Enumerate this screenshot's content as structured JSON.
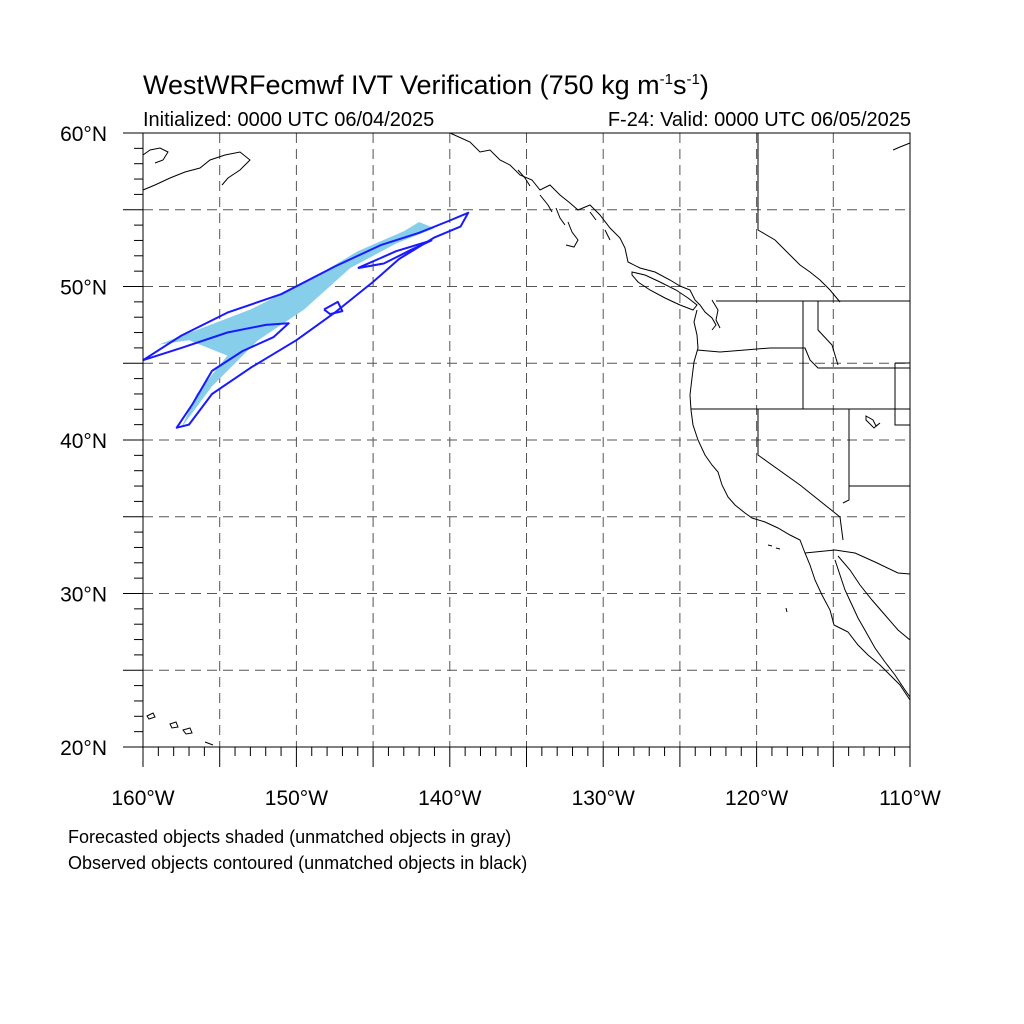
{
  "title": {
    "main": "WestWRFecmwf IVT Verification (750 kg m",
    "exp1": "-1",
    "mid": "s",
    "exp2": "-1",
    "close": ")"
  },
  "subtitle": {
    "initialized": "Initialized: 0000 UTC 06/04/2025",
    "valid": "F-24: Valid: 0000 UTC 06/05/2025"
  },
  "axes": {
    "lon_labels": [
      "160°W",
      "150°W",
      "140°W",
      "130°W",
      "120°W",
      "110°W"
    ],
    "lon_values": [
      -160,
      -150,
      -140,
      -130,
      -120,
      -110
    ],
    "lat_labels": [
      "20°N",
      "30°N",
      "40°N",
      "50°N",
      "60°N"
    ],
    "lat_values": [
      20,
      30,
      40,
      50,
      60
    ],
    "lon_range": [
      -160,
      -110
    ],
    "lat_range": [
      20,
      60
    ],
    "grid": "dashed, every 5 degrees"
  },
  "legend": {
    "line1": "Forecasted objects shaded (unmatched objects in gray)",
    "line2": "Observed objects contoured (unmatched objects in black)"
  },
  "colors": {
    "forecast_fill": "#87ceeb",
    "observed_contour": "#1a1aff",
    "coastline": "#000000",
    "grid": "#555555"
  },
  "chart_data": {
    "type": "map",
    "forecast_object": {
      "description_value": "matched forecast IVT object",
      "polygon_lonlat": [
        [
          -157.5,
          40.8
        ],
        [
          -156.5,
          43.0
        ],
        [
          -154.5,
          45.5
        ],
        [
          -157.0,
          46.5
        ],
        [
          -159.0,
          46.2
        ],
        [
          -153.0,
          48.5
        ],
        [
          -149.0,
          50.5
        ],
        [
          -146.0,
          52.3
        ],
        [
          -143.0,
          53.6
        ],
        [
          -142.0,
          54.2
        ],
        [
          -141.0,
          53.8
        ],
        [
          -143.5,
          52.8
        ],
        [
          -146.5,
          51.2
        ],
        [
          -149.5,
          48.5
        ],
        [
          -152.5,
          46.5
        ],
        [
          -155.5,
          43.5
        ]
      ]
    },
    "observed_contours_lonlat": [
      [
        [
          -160.0,
          45.2
        ],
        [
          -157.5,
          46.8
        ],
        [
          -154.5,
          48.3
        ],
        [
          -151.0,
          49.5
        ],
        [
          -147.5,
          51.3
        ],
        [
          -144.5,
          52.7
        ],
        [
          -142.0,
          53.5
        ],
        [
          -140.0,
          54.3
        ],
        [
          -138.8,
          54.8
        ],
        [
          -139.3,
          53.9
        ],
        [
          -141.0,
          53.2
        ],
        [
          -143.3,
          51.8
        ],
        [
          -145.0,
          50.3
        ],
        [
          -147.5,
          48.3
        ],
        [
          -150.0,
          46.5
        ],
        [
          -153.0,
          44.7
        ],
        [
          -155.5,
          43.0
        ],
        [
          -157.0,
          41.0
        ],
        [
          -157.8,
          40.8
        ],
        [
          -156.8,
          42.3
        ],
        [
          -155.5,
          44.5
        ],
        [
          -153.5,
          45.8
        ],
        [
          -151.5,
          46.7
        ],
        [
          -150.5,
          47.6
        ],
        [
          -152.0,
          47.5
        ],
        [
          -154.5,
          47.0
        ],
        [
          -157.5,
          46.0
        ],
        [
          -160.0,
          45.2
        ]
      ],
      [
        [
          -146.0,
          51.2
        ],
        [
          -143.5,
          52.3
        ],
        [
          -141.2,
          53.0
        ],
        [
          -142.5,
          52.4
        ],
        [
          -144.3,
          51.5
        ],
        [
          -146.0,
          51.2
        ]
      ],
      [
        [
          -148.2,
          48.5
        ],
        [
          -147.3,
          49.0
        ],
        [
          -147.0,
          48.4
        ],
        [
          -147.8,
          48.2
        ],
        [
          -148.2,
          48.5
        ]
      ]
    ]
  }
}
